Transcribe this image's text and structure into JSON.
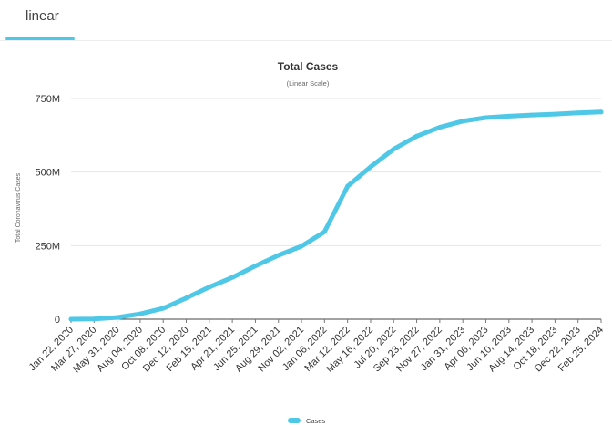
{
  "tabs": [
    {
      "label": "linear",
      "active": true
    },
    {
      "label": "",
      "active": false
    }
  ],
  "chart_data": {
    "type": "line",
    "title": "Total Cases",
    "subtitle": "(Linear Scale)",
    "ylabel": "Total Coronavirus Cases",
    "xlabel": "",
    "ylim": [
      0,
      750000000
    ],
    "yticks": [
      0,
      250000000,
      500000000,
      750000000
    ],
    "ytick_labels": [
      "0",
      "250M",
      "500M",
      "750M"
    ],
    "categories": [
      "Jan 22, 2020",
      "Mar 27, 2020",
      "May 31, 2020",
      "Aug 04, 2020",
      "Oct 08, 2020",
      "Dec 12, 2020",
      "Feb 15, 2021",
      "Apr 21, 2021",
      "Jun 25, 2021",
      "Aug 29, 2021",
      "Nov 02, 2021",
      "Jan 06, 2022",
      "Mar 12, 2022",
      "May 16, 2022",
      "Jul 20, 2022",
      "Sep 23, 2022",
      "Nov 27, 2022",
      "Jan 31, 2023",
      "Apr 06, 2023",
      "Jun 10, 2023",
      "Aug 14, 2023",
      "Oct 18, 2023",
      "Dec 22, 2023",
      "Feb 25, 2024"
    ],
    "series": [
      {
        "name": "Cases",
        "color": "#4fc7e6",
        "values": [
          0,
          500000,
          6000000,
          18000000,
          37000000,
          72000000,
          109000000,
          142000000,
          181000000,
          217000000,
          248000000,
          297000000,
          452000000,
          518000000,
          578000000,
          622000000,
          652000000,
          673000000,
          685000000,
          690000000,
          694000000,
          697000000,
          701000000,
          704000000
        ]
      }
    ],
    "grid": true,
    "legend": "bottom"
  }
}
